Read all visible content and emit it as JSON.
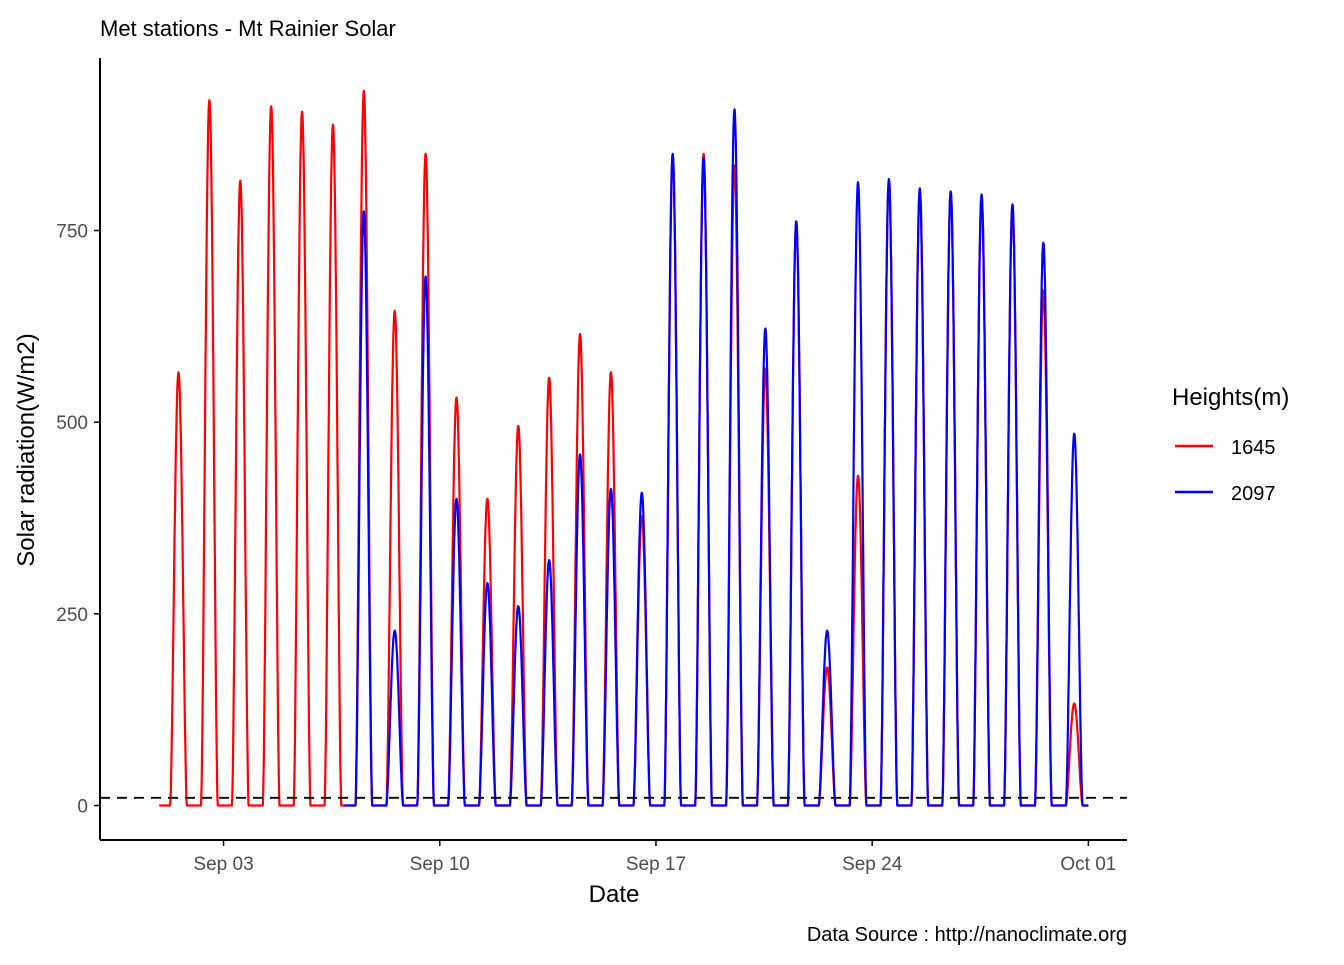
{
  "chart_data": {
    "type": "line",
    "title": "Met stations -  Mt Rainier  Solar",
    "xlabel": "Date",
    "ylabel": "Solar radiation(W/m2)",
    "caption": "Data Source : http://nanoclimate.org",
    "xlim": [
      "2023-08-30T00:00",
      "2023-10-02T06:00"
    ],
    "ylim": [
      -45,
      975
    ],
    "x_ticks": [
      {
        "date": "2023-09-03",
        "label": "Sep 03"
      },
      {
        "date": "2023-09-10",
        "label": "Sep 10"
      },
      {
        "date": "2023-09-17",
        "label": "Sep 17"
      },
      {
        "date": "2023-09-24",
        "label": "Sep 24"
      },
      {
        "date": "2023-10-01",
        "label": "Oct 01"
      }
    ],
    "y_ticks": [
      0,
      250,
      500,
      750
    ],
    "reference_line": {
      "y": 10,
      "style": "dashed",
      "color": "#000000"
    },
    "legend": {
      "title": "Heights(m)",
      "position": "right"
    },
    "grid": false,
    "series": [
      {
        "name": "1645",
        "color": "#ff0000",
        "daily_peaks": [
          {
            "date": "2023-09-01",
            "peak": 565
          },
          {
            "date": "2023-09-02",
            "peak": 920
          },
          {
            "date": "2023-09-03",
            "peak": 815
          },
          {
            "date": "2023-09-04",
            "peak": 912
          },
          {
            "date": "2023-09-05",
            "peak": 905
          },
          {
            "date": "2023-09-06",
            "peak": 888
          },
          {
            "date": "2023-09-07",
            "peak": 932
          },
          {
            "date": "2023-09-08",
            "peak": 645
          },
          {
            "date": "2023-09-09",
            "peak": 850
          },
          {
            "date": "2023-09-10",
            "peak": 532
          },
          {
            "date": "2023-09-11",
            "peak": 400
          },
          {
            "date": "2023-09-12",
            "peak": 495
          },
          {
            "date": "2023-09-13",
            "peak": 558
          },
          {
            "date": "2023-09-14",
            "peak": 615
          },
          {
            "date": "2023-09-15",
            "peak": 565
          },
          {
            "date": "2023-09-16",
            "peak": 377
          },
          {
            "date": "2023-09-17",
            "peak": 848
          },
          {
            "date": "2023-09-18",
            "peak": 850
          },
          {
            "date": "2023-09-19",
            "peak": 835
          },
          {
            "date": "2023-09-20",
            "peak": 570
          },
          {
            "date": "2023-09-21",
            "peak": 760
          },
          {
            "date": "2023-09-22",
            "peak": 180
          },
          {
            "date": "2023-09-23",
            "peak": 430
          },
          {
            "date": "2023-09-24",
            "peak": 815
          },
          {
            "date": "2023-09-25",
            "peak": 803
          },
          {
            "date": "2023-09-26",
            "peak": 800
          },
          {
            "date": "2023-09-27",
            "peak": 795
          },
          {
            "date": "2023-09-28",
            "peak": 782
          },
          {
            "date": "2023-09-29",
            "peak": 672
          },
          {
            "date": "2023-09-30",
            "peak": 133
          }
        ]
      },
      {
        "name": "2097",
        "color": "#0000ff",
        "daily_peaks": [
          {
            "date": "2023-09-07",
            "peak": 775
          },
          {
            "date": "2023-09-08",
            "peak": 228
          },
          {
            "date": "2023-09-09",
            "peak": 690
          },
          {
            "date": "2023-09-10",
            "peak": 400
          },
          {
            "date": "2023-09-11",
            "peak": 290
          },
          {
            "date": "2023-09-12",
            "peak": 260
          },
          {
            "date": "2023-09-13",
            "peak": 320
          },
          {
            "date": "2023-09-14",
            "peak": 458
          },
          {
            "date": "2023-09-15",
            "peak": 413
          },
          {
            "date": "2023-09-16",
            "peak": 408
          },
          {
            "date": "2023-09-17",
            "peak": 850
          },
          {
            "date": "2023-09-18",
            "peak": 845
          },
          {
            "date": "2023-09-19",
            "peak": 908
          },
          {
            "date": "2023-09-20",
            "peak": 622
          },
          {
            "date": "2023-09-21",
            "peak": 762
          },
          {
            "date": "2023-09-22",
            "peak": 228
          },
          {
            "date": "2023-09-23",
            "peak": 813
          },
          {
            "date": "2023-09-24",
            "peak": 817
          },
          {
            "date": "2023-09-25",
            "peak": 805
          },
          {
            "date": "2023-09-26",
            "peak": 801
          },
          {
            "date": "2023-09-27",
            "peak": 797
          },
          {
            "date": "2023-09-28",
            "peak": 784
          },
          {
            "date": "2023-09-29",
            "peak": 734
          },
          {
            "date": "2023-09-30",
            "peak": 485
          }
        ]
      }
    ]
  }
}
